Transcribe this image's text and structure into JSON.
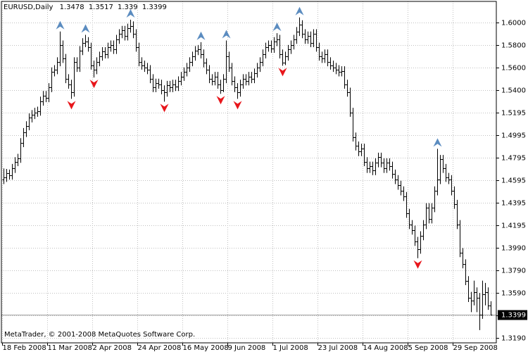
{
  "chart_data": {
    "type": "ohlc",
    "title": "EURUSD,Daily",
    "copyright": "MetaTrader, © 2001-2008 MetaQuotes Software Corp.",
    "color": "#000000",
    "fractal_up_color": "#5b8cc0",
    "fractal_down_color": "#e8161b",
    "grid": true,
    "ylim": [
      1.3146,
      1.6188
    ],
    "yticks": [
      {
        "value": 1.6,
        "label": "1.6000"
      },
      {
        "value": 1.58,
        "label": "1.5800"
      },
      {
        "value": 1.56,
        "label": "1.5600"
      },
      {
        "value": 1.54,
        "label": "1.5400"
      },
      1.5195,
      1.4995,
      1.4795,
      1.4595,
      1.4395,
      1.4195,
      {
        "value": 1.399,
        "label": "1.3990"
      },
      {
        "value": 1.379,
        "label": "1.3790"
      },
      {
        "value": 1.359,
        "label": "1.3590"
      },
      {
        "value": 1.339,
        "label": "1.3390"
      },
      {
        "value": 1.319,
        "label": "1.3190"
      }
    ],
    "categories": [
      "18 Feb 2008",
      null,
      null,
      null,
      null,
      null,
      null,
      null,
      null,
      null,
      null,
      null,
      null,
      null,
      null,
      null,
      "11 Mar 2008",
      null,
      null,
      null,
      null,
      null,
      null,
      null,
      null,
      null,
      null,
      null,
      null,
      null,
      null,
      null,
      "2 Apr 2008",
      null,
      null,
      null,
      null,
      null,
      null,
      null,
      null,
      null,
      null,
      null,
      null,
      null,
      null,
      null,
      "24 Apr 2008",
      null,
      null,
      null,
      null,
      null,
      null,
      null,
      null,
      null,
      null,
      null,
      null,
      null,
      null,
      null,
      "16 May 2008",
      null,
      null,
      null,
      null,
      null,
      null,
      null,
      null,
      null,
      null,
      null,
      null,
      null,
      null,
      null,
      "9 Jun 2008",
      null,
      null,
      null,
      null,
      null,
      null,
      null,
      null,
      null,
      null,
      null,
      null,
      null,
      null,
      null,
      "1 Jul 2008",
      null,
      null,
      null,
      null,
      null,
      null,
      null,
      null,
      null,
      null,
      null,
      null,
      null,
      null,
      null,
      "23 Jul 2008",
      null,
      null,
      null,
      null,
      null,
      null,
      null,
      null,
      null,
      null,
      null,
      null,
      null,
      null,
      null,
      "14 Aug 2008",
      null,
      null,
      null,
      null,
      null,
      null,
      null,
      null,
      null,
      null,
      null,
      null,
      null,
      null,
      null,
      "5 Sep 2008",
      null,
      null,
      null,
      null,
      null,
      null,
      null,
      null,
      null,
      null,
      null,
      null,
      null,
      null,
      null,
      "29 Sep 2008",
      null,
      null,
      null,
      null,
      null,
      null,
      null,
      null,
      null,
      null,
      null,
      null,
      null
    ],
    "open": [
      1.46,
      1.462,
      1.4655,
      1.464,
      1.47,
      1.476,
      1.479,
      1.493,
      1.502,
      1.508,
      1.515,
      1.518,
      1.52,
      1.521,
      1.53,
      1.535,
      1.533,
      1.542,
      1.556,
      1.558,
      1.565,
      1.58,
      1.568,
      1.55,
      1.545,
      1.538,
      1.565,
      1.56,
      1.575,
      1.582,
      1.583,
      1.578,
      1.562,
      1.558,
      1.565,
      1.57,
      1.574,
      1.572,
      1.578,
      1.58,
      1.576,
      1.585,
      1.59,
      1.593,
      1.588,
      1.595,
      1.597,
      1.59,
      1.578,
      1.565,
      1.562,
      1.56,
      1.558,
      1.55,
      1.542,
      1.546,
      1.545,
      1.54,
      1.538,
      1.544,
      1.542,
      1.545,
      1.543,
      1.548,
      1.552,
      1.556,
      1.56,
      1.565,
      1.57,
      1.575,
      1.576,
      1.572,
      1.564,
      1.558,
      1.55,
      1.548,
      1.552,
      1.545,
      1.54,
      1.55,
      1.57,
      1.56,
      1.548,
      1.542,
      1.538,
      1.545,
      1.55,
      1.548,
      1.552,
      1.55,
      1.555,
      1.56,
      1.565,
      1.572,
      1.578,
      1.58,
      1.577,
      1.583,
      1.585,
      1.572,
      1.564,
      1.57,
      1.576,
      1.58,
      1.585,
      1.592,
      1.598,
      1.59,
      1.585,
      1.588,
      1.582,
      1.59,
      1.578,
      1.57,
      1.568,
      1.572,
      1.565,
      1.562,
      1.56,
      1.558,
      1.556,
      1.557,
      1.545,
      1.538,
      1.52,
      1.498,
      1.49,
      1.485,
      1.488,
      1.476,
      1.47,
      1.472,
      1.468,
      1.475,
      1.48,
      1.475,
      1.47,
      1.475,
      1.472,
      1.465,
      1.46,
      1.455,
      1.45,
      1.445,
      1.43,
      1.42,
      1.415,
      1.405,
      1.398,
      1.41,
      1.42,
      1.435,
      1.425,
      1.435,
      1.45,
      1.46,
      1.478,
      1.47,
      1.462,
      1.46,
      1.45,
      1.438,
      1.42,
      1.395,
      1.385,
      1.37,
      1.355,
      1.352,
      1.36,
      1.355,
      1.34,
      1.358,
      1.36,
      1.3478
    ],
    "high": [
      1.47,
      1.4695,
      1.469,
      1.474,
      1.48,
      1.483,
      1.497,
      1.506,
      1.512,
      1.519,
      1.522,
      1.524,
      1.525,
      1.534,
      1.539,
      1.539,
      1.546,
      1.56,
      1.562,
      1.569,
      1.592,
      1.584,
      1.572,
      1.554,
      1.549,
      1.569,
      1.569,
      1.579,
      1.586,
      1.589,
      1.587,
      1.582,
      1.566,
      1.569,
      1.574,
      1.578,
      1.578,
      1.582,
      1.584,
      1.584,
      1.589,
      1.594,
      1.597,
      1.597,
      1.599,
      1.6025,
      1.601,
      1.594,
      1.582,
      1.569,
      1.566,
      1.564,
      1.562,
      1.554,
      1.55,
      1.55,
      1.549,
      1.544,
      1.548,
      1.548,
      1.549,
      1.549,
      1.552,
      1.556,
      1.56,
      1.564,
      1.569,
      1.574,
      1.579,
      1.58,
      1.5825,
      1.576,
      1.568,
      1.562,
      1.554,
      1.556,
      1.556,
      1.549,
      1.554,
      1.584,
      1.574,
      1.564,
      1.552,
      1.546,
      1.549,
      1.554,
      1.554,
      1.556,
      1.556,
      1.559,
      1.564,
      1.569,
      1.576,
      1.582,
      1.584,
      1.584,
      1.587,
      1.5905,
      1.589,
      1.576,
      1.574,
      1.58,
      1.584,
      1.589,
      1.596,
      1.6045,
      1.602,
      1.594,
      1.592,
      1.592,
      1.594,
      1.594,
      1.582,
      1.574,
      1.576,
      1.576,
      1.569,
      1.566,
      1.564,
      1.562,
      1.561,
      1.561,
      1.549,
      1.542,
      1.524,
      1.502,
      1.494,
      1.492,
      1.492,
      1.48,
      1.476,
      1.476,
      1.479,
      1.484,
      1.484,
      1.479,
      1.479,
      1.479,
      1.476,
      1.469,
      1.464,
      1.459,
      1.454,
      1.449,
      1.434,
      1.424,
      1.419,
      1.409,
      1.414,
      1.424,
      1.439,
      1.439,
      1.439,
      1.454,
      1.4875,
      1.482,
      1.482,
      1.474,
      1.466,
      1.464,
      1.454,
      1.442,
      1.424,
      1.399,
      1.389,
      1.374,
      1.36,
      1.37,
      1.364,
      1.359,
      1.37,
      1.368,
      1.364,
      1.3517
    ],
    "low": [
      1.456,
      1.458,
      1.46,
      1.46,
      1.466,
      1.472,
      1.475,
      1.489,
      1.498,
      1.504,
      1.511,
      1.514,
      1.516,
      1.517,
      1.526,
      1.529,
      1.529,
      1.538,
      1.552,
      1.554,
      1.561,
      1.564,
      1.546,
      1.541,
      1.532,
      1.534,
      1.556,
      1.556,
      1.571,
      1.578,
      1.574,
      1.558,
      1.551,
      1.554,
      1.561,
      1.566,
      1.568,
      1.568,
      1.574,
      1.572,
      1.572,
      1.581,
      1.586,
      1.584,
      1.584,
      1.591,
      1.586,
      1.574,
      1.561,
      1.558,
      1.556,
      1.554,
      1.546,
      1.538,
      1.538,
      1.541,
      1.536,
      1.5295,
      1.534,
      1.538,
      1.538,
      1.539,
      1.539,
      1.544,
      1.548,
      1.552,
      1.556,
      1.561,
      1.566,
      1.571,
      1.568,
      1.56,
      1.554,
      1.546,
      1.544,
      1.544,
      1.541,
      1.5365,
      1.538,
      1.546,
      1.556,
      1.544,
      1.538,
      1.532,
      1.534,
      1.541,
      1.544,
      1.544,
      1.546,
      1.546,
      1.551,
      1.556,
      1.561,
      1.568,
      1.574,
      1.573,
      1.573,
      1.579,
      1.568,
      1.5615,
      1.562,
      1.566,
      1.572,
      1.576,
      1.581,
      1.588,
      1.586,
      1.581,
      1.581,
      1.578,
      1.578,
      1.574,
      1.566,
      1.564,
      1.564,
      1.561,
      1.558,
      1.556,
      1.554,
      1.552,
      1.552,
      1.541,
      1.534,
      1.516,
      1.494,
      1.486,
      1.481,
      1.481,
      1.472,
      1.466,
      1.466,
      1.464,
      1.464,
      1.471,
      1.471,
      1.466,
      1.466,
      1.468,
      1.461,
      1.456,
      1.451,
      1.446,
      1.441,
      1.426,
      1.416,
      1.411,
      1.401,
      1.39,
      1.394,
      1.406,
      1.416,
      1.421,
      1.421,
      1.431,
      1.446,
      1.456,
      1.466,
      1.458,
      1.456,
      1.446,
      1.434,
      1.416,
      1.391,
      1.381,
      1.366,
      1.351,
      1.342,
      1.348,
      1.342,
      1.326,
      1.336,
      1.348,
      1.344,
      1.339
    ],
    "close": [
      1.462,
      1.4655,
      1.464,
      1.47,
      1.476,
      1.479,
      1.493,
      1.502,
      1.508,
      1.515,
      1.518,
      1.52,
      1.521,
      1.53,
      1.535,
      1.533,
      1.542,
      1.556,
      1.558,
      1.565,
      1.58,
      1.568,
      1.55,
      1.545,
      1.538,
      1.565,
      1.56,
      1.575,
      1.582,
      1.583,
      1.578,
      1.562,
      1.558,
      1.565,
      1.57,
      1.574,
      1.572,
      1.578,
      1.58,
      1.576,
      1.585,
      1.59,
      1.593,
      1.588,
      1.595,
      1.597,
      1.59,
      1.578,
      1.565,
      1.562,
      1.56,
      1.558,
      1.55,
      1.542,
      1.546,
      1.545,
      1.54,
      1.538,
      1.544,
      1.542,
      1.545,
      1.543,
      1.548,
      1.552,
      1.556,
      1.56,
      1.565,
      1.57,
      1.575,
      1.576,
      1.572,
      1.564,
      1.558,
      1.55,
      1.548,
      1.552,
      1.545,
      1.54,
      1.55,
      1.57,
      1.56,
      1.548,
      1.542,
      1.538,
      1.545,
      1.55,
      1.548,
      1.552,
      1.55,
      1.555,
      1.56,
      1.565,
      1.572,
      1.578,
      1.58,
      1.577,
      1.583,
      1.585,
      1.572,
      1.564,
      1.57,
      1.576,
      1.58,
      1.585,
      1.592,
      1.598,
      1.59,
      1.585,
      1.588,
      1.582,
      1.59,
      1.578,
      1.57,
      1.568,
      1.572,
      1.565,
      1.562,
      1.56,
      1.558,
      1.556,
      1.557,
      1.545,
      1.538,
      1.52,
      1.498,
      1.49,
      1.485,
      1.488,
      1.476,
      1.47,
      1.472,
      1.468,
      1.475,
      1.48,
      1.475,
      1.47,
      1.475,
      1.472,
      1.465,
      1.46,
      1.455,
      1.45,
      1.445,
      1.43,
      1.42,
      1.415,
      1.405,
      1.398,
      1.41,
      1.42,
      1.435,
      1.425,
      1.435,
      1.45,
      1.46,
      1.478,
      1.47,
      1.462,
      1.46,
      1.45,
      1.438,
      1.42,
      1.395,
      1.385,
      1.37,
      1.355,
      1.352,
      1.36,
      1.355,
      1.34,
      1.358,
      1.36,
      1.348,
      1.3399
    ],
    "fractal_up": [
      null,
      null,
      null,
      null,
      null,
      null,
      null,
      null,
      null,
      null,
      null,
      null,
      null,
      null,
      null,
      null,
      null,
      null,
      null,
      null,
      1.592,
      null,
      null,
      null,
      null,
      null,
      null,
      null,
      null,
      1.589,
      null,
      null,
      null,
      null,
      null,
      null,
      null,
      null,
      null,
      null,
      null,
      null,
      null,
      null,
      null,
      1.6025,
      null,
      null,
      null,
      null,
      null,
      null,
      null,
      null,
      null,
      null,
      null,
      null,
      null,
      null,
      null,
      null,
      null,
      null,
      null,
      null,
      null,
      null,
      null,
      null,
      1.5825,
      null,
      null,
      null,
      null,
      null,
      null,
      null,
      null,
      1.584,
      null,
      null,
      null,
      null,
      null,
      null,
      null,
      null,
      null,
      null,
      null,
      null,
      null,
      null,
      null,
      null,
      null,
      1.5905,
      null,
      null,
      null,
      null,
      null,
      null,
      null,
      1.6045,
      null,
      null,
      null,
      null,
      null,
      null,
      null,
      null,
      null,
      null,
      null,
      null,
      null,
      null,
      null,
      null,
      null,
      null,
      null,
      null,
      null,
      null,
      null,
      null,
      null,
      null,
      null,
      null,
      null,
      null,
      null,
      null,
      null,
      null,
      null,
      null,
      null,
      null,
      null,
      null,
      null,
      null,
      null,
      null,
      null,
      null,
      null,
      null,
      1.4875,
      null,
      null,
      null,
      null,
      null,
      null,
      null,
      null,
      null,
      null,
      null,
      null,
      null,
      null,
      null,
      null,
      null,
      null,
      null
    ],
    "fractal_down": [
      null,
      null,
      null,
      null,
      null,
      null,
      null,
      null,
      null,
      null,
      null,
      null,
      null,
      null,
      null,
      null,
      null,
      null,
      null,
      null,
      null,
      null,
      null,
      null,
      1.532,
      null,
      null,
      null,
      null,
      null,
      null,
      null,
      1.551,
      null,
      null,
      null,
      null,
      null,
      null,
      null,
      null,
      null,
      null,
      null,
      null,
      null,
      null,
      null,
      null,
      null,
      null,
      null,
      null,
      null,
      null,
      null,
      null,
      1.5295,
      null,
      null,
      null,
      null,
      null,
      null,
      null,
      null,
      null,
      null,
      null,
      null,
      null,
      null,
      null,
      null,
      null,
      null,
      null,
      1.5365,
      null,
      null,
      null,
      null,
      null,
      1.532,
      null,
      null,
      null,
      null,
      null,
      null,
      null,
      null,
      null,
      null,
      null,
      null,
      null,
      null,
      null,
      1.5615,
      null,
      null,
      null,
      null,
      null,
      null,
      null,
      null,
      null,
      null,
      null,
      null,
      null,
      null,
      null,
      null,
      null,
      null,
      null,
      null,
      null,
      null,
      null,
      null,
      null,
      null,
      null,
      null,
      null,
      null,
      null,
      null,
      null,
      null,
      null,
      null,
      null,
      null,
      null,
      null,
      null,
      null,
      null,
      null,
      null,
      null,
      null,
      1.39,
      null,
      null,
      null,
      null,
      null,
      null,
      null,
      null,
      null,
      null,
      null,
      null,
      null,
      null,
      null,
      null,
      null,
      null,
      null,
      null,
      null,
      null,
      null,
      null,
      null,
      null
    ]
  }
}
